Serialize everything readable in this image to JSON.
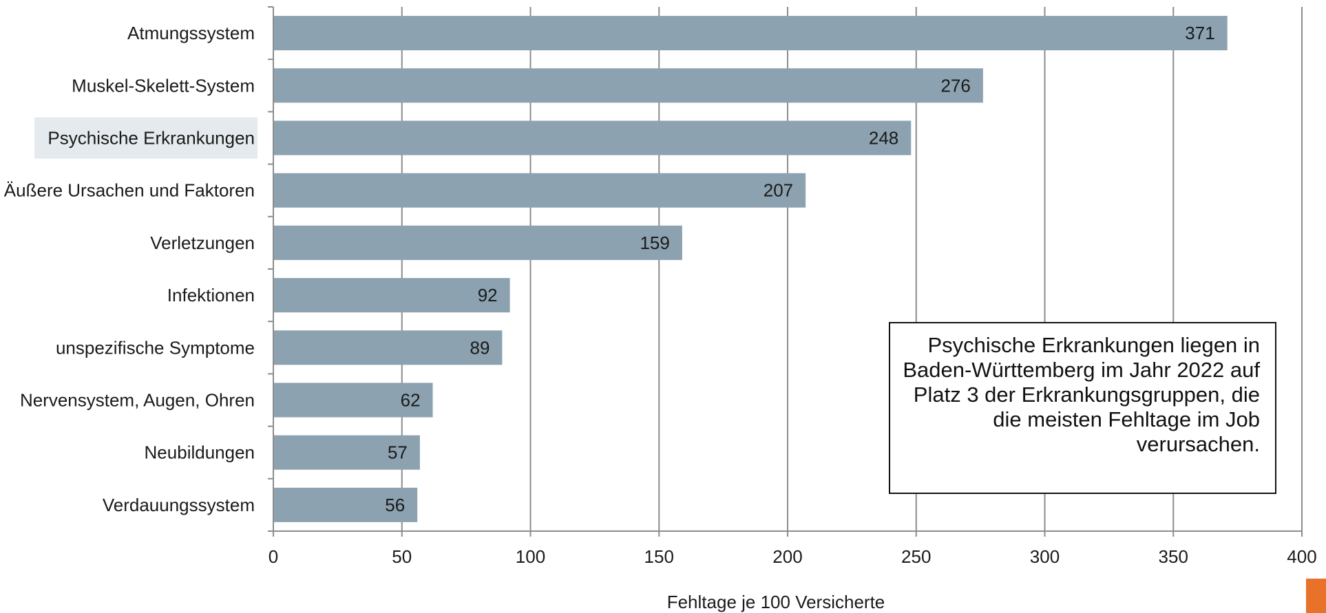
{
  "chart_data": {
    "type": "bar",
    "orientation": "horizontal",
    "categories": [
      "Atmungssystem",
      "Muskel-Skelett-System",
      "Psychische Erkrankungen",
      "Äußere Ursachen und Faktoren",
      "Verletzungen",
      "Infektionen",
      "unspezifische Symptome",
      "Nervensystem, Augen, Ohren",
      "Neubildungen",
      "Verdauungssystem"
    ],
    "values": [
      371,
      276,
      248,
      207,
      159,
      92,
      89,
      62,
      57,
      56
    ],
    "highlighted_category": "Psychische Erkrankungen",
    "xlabel": "Fehltage je 100 Versicherte",
    "ylabel": "",
    "xlim": [
      0,
      400
    ],
    "xticks": [
      0,
      50,
      100,
      150,
      200,
      250,
      300,
      350,
      400
    ],
    "grid": "vertical",
    "legend": "none",
    "colors": {
      "bar": "#8ca2b0",
      "grid": "#8c8c8c",
      "highlight_bg": "#e4eaed",
      "corner_accent": "#e8722a"
    },
    "annotation": "Psychische Erkrankungen liegen in Baden-Württemberg im Jahr 2022 auf Platz 3 der Erkrankungsgruppen, die die meisten Fehltage im Job verursachen."
  }
}
